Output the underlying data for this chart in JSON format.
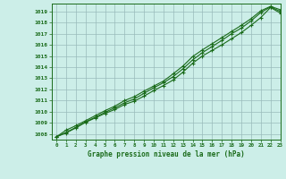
{
  "title": "Graphe pression niveau de la mer (hPa)",
  "bg_color": "#cceee8",
  "grid_color": "#99bbbb",
  "line_color": "#1a6b1a",
  "xlim": [
    -0.5,
    23
  ],
  "ylim": [
    1007.5,
    1019.7
  ],
  "xticks": [
    0,
    1,
    2,
    3,
    4,
    5,
    6,
    7,
    8,
    9,
    10,
    11,
    12,
    13,
    14,
    15,
    16,
    17,
    18,
    19,
    20,
    21,
    22,
    23
  ],
  "yticks": [
    1008,
    1009,
    1010,
    1011,
    1012,
    1013,
    1014,
    1015,
    1016,
    1017,
    1018,
    1019
  ],
  "line1_x": [
    0,
    1,
    2,
    3,
    4,
    5,
    6,
    7,
    8,
    9,
    10,
    11,
    12,
    13,
    14,
    15,
    16,
    17,
    18,
    19,
    20,
    21,
    22,
    23
  ],
  "line1_y": [
    1007.75,
    1008.1,
    1008.55,
    1009.05,
    1009.45,
    1009.85,
    1010.2,
    1010.65,
    1010.95,
    1011.4,
    1011.9,
    1012.35,
    1012.85,
    1013.55,
    1014.35,
    1015.0,
    1015.5,
    1016.0,
    1016.55,
    1017.1,
    1017.75,
    1018.45,
    1019.35,
    1018.85
  ],
  "line2_x": [
    0,
    1,
    2,
    3,
    4,
    5,
    6,
    7,
    8,
    9,
    10,
    11,
    12,
    13,
    14,
    15,
    16,
    17,
    18,
    19,
    20,
    21,
    22,
    23
  ],
  "line2_y": [
    1007.75,
    1008.15,
    1008.6,
    1009.1,
    1009.5,
    1009.95,
    1010.35,
    1010.8,
    1011.15,
    1011.65,
    1012.15,
    1012.6,
    1013.15,
    1013.85,
    1014.65,
    1015.3,
    1015.85,
    1016.4,
    1017.0,
    1017.5,
    1018.15,
    1018.9,
    1019.4,
    1019.0
  ],
  "line3_x": [
    0,
    1,
    2,
    3,
    4,
    5,
    6,
    7,
    8,
    9,
    10,
    11,
    12,
    13,
    14,
    15,
    16,
    17,
    18,
    19,
    20,
    21,
    22,
    23
  ],
  "line3_y": [
    1007.75,
    1008.35,
    1008.75,
    1009.2,
    1009.65,
    1010.1,
    1010.5,
    1011.0,
    1011.35,
    1011.85,
    1012.3,
    1012.75,
    1013.4,
    1014.1,
    1014.95,
    1015.55,
    1016.1,
    1016.65,
    1017.2,
    1017.75,
    1018.35,
    1019.05,
    1019.45,
    1019.15
  ]
}
